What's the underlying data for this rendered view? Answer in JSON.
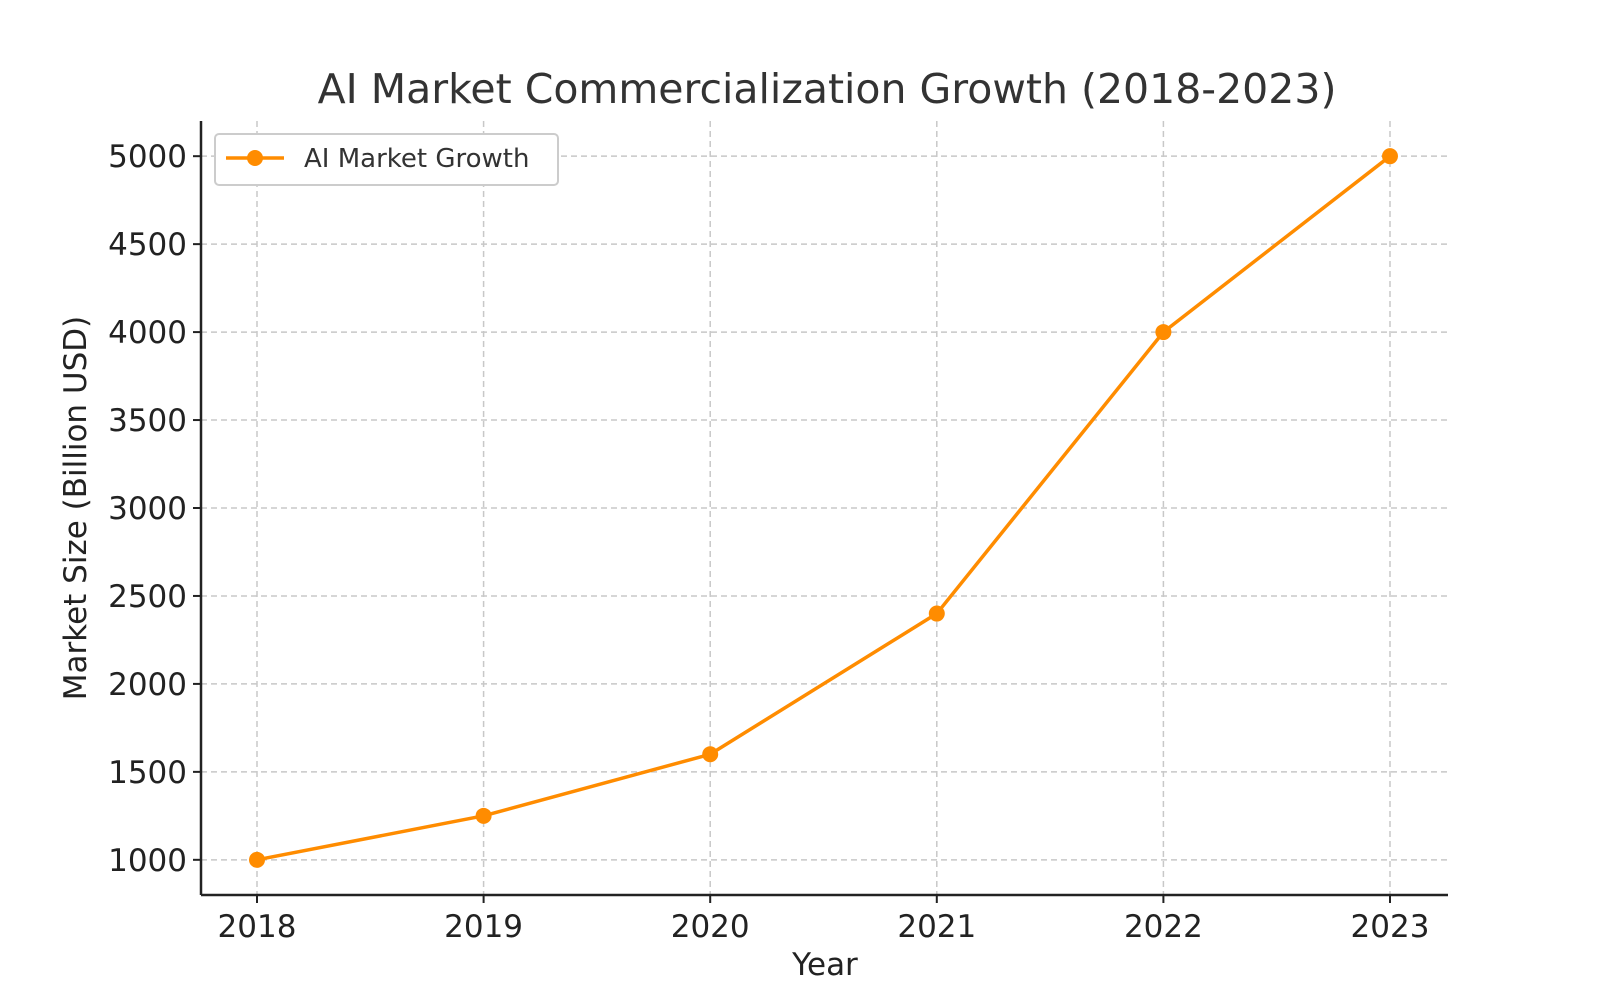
{
  "colors": {
    "series": "#ff8c00",
    "grid": "#c8c8c8",
    "axis": "#222222",
    "text": "#333333",
    "legend_border": "#cccccc"
  },
  "chart_data": {
    "type": "line",
    "title": "AI Market Commercialization Growth (2018-2023)",
    "xlabel": "Year",
    "ylabel": "Market Size (Billion USD)",
    "x": [
      "2018",
      "2019",
      "2020",
      "2021",
      "2022",
      "2023"
    ],
    "yticks": [
      "1000",
      "1500",
      "2000",
      "2500",
      "3000",
      "3500",
      "4000",
      "4500",
      "5000"
    ],
    "ylim": [
      800,
      5200
    ],
    "grid": true,
    "legend_position": "top-left",
    "series": [
      {
        "name": "AI Market Growth",
        "values": [
          1000,
          1250,
          1600,
          2400,
          4000,
          5000
        ],
        "marker": "circle",
        "color": "#ff8c00"
      }
    ]
  }
}
